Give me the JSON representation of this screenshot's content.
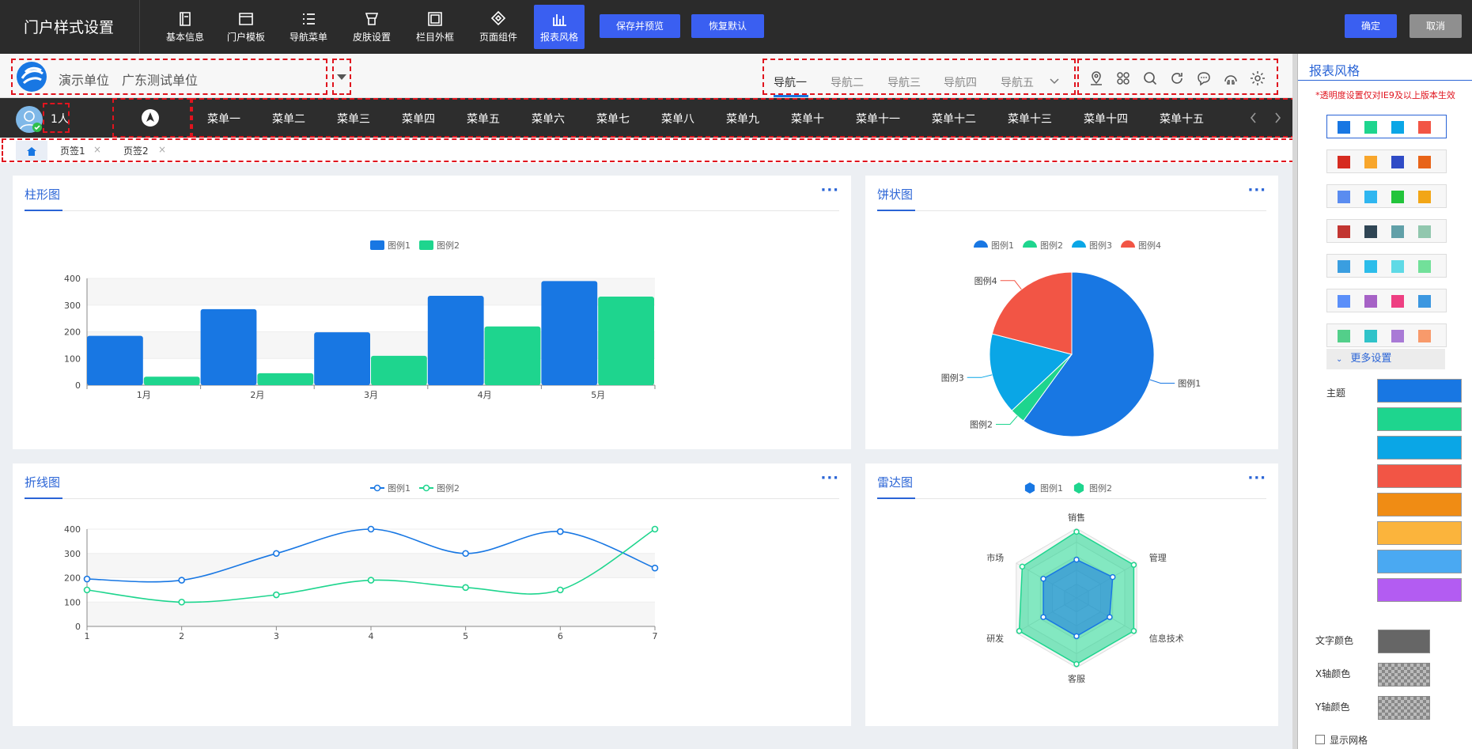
{
  "toolbar": {
    "title": "门户样式设置",
    "buttons": [
      {
        "label": "基本信息",
        "icon": "book-icon"
      },
      {
        "label": "门户模板",
        "icon": "template-icon"
      },
      {
        "label": "导航菜单",
        "icon": "menu-list-icon"
      },
      {
        "label": "皮肤设置",
        "icon": "skin-icon"
      },
      {
        "label": "栏目外框",
        "icon": "frame-icon"
      },
      {
        "label": "页面组件",
        "icon": "component-icon"
      },
      {
        "label": "报表风格",
        "icon": "bar-chart-icon",
        "active": true
      }
    ],
    "save_preview": "保存并预览",
    "restore_default": "恢复默认",
    "confirm": "确定",
    "cancel": "取消"
  },
  "header": {
    "unit_label": "演示单位",
    "unit_name": "广东测试单位",
    "nav": [
      "导航一",
      "导航二",
      "导航三",
      "导航四",
      "导航五"
    ],
    "active_nav": "导航一",
    "icons": [
      "location-icon",
      "apps-icon",
      "search-icon",
      "refresh-icon",
      "chat-icon",
      "help-icon",
      "gear-icon"
    ]
  },
  "menubar": {
    "online_count": "1人",
    "menus": [
      "菜单一",
      "菜单二",
      "菜单三",
      "菜单四",
      "菜单五",
      "菜单六",
      "菜单七",
      "菜单八",
      "菜单九",
      "菜单十",
      "菜单十一",
      "菜单十二",
      "菜单十三",
      "菜单十四",
      "菜单十五"
    ]
  },
  "tabs": [
    "页签1",
    "页签2"
  ],
  "chart_data": [
    {
      "type": "bar",
      "title": "柱形图",
      "categories": [
        "1月",
        "2月",
        "3月",
        "4月",
        "5月"
      ],
      "series": [
        {
          "name": "图例1",
          "values": [
            185,
            285,
            198,
            335,
            390
          ]
        },
        {
          "name": "图例2",
          "values": [
            32,
            45,
            110,
            220,
            332
          ]
        }
      ],
      "ylim": [
        0,
        400
      ],
      "yticks": [
        0,
        100,
        200,
        300,
        400
      ],
      "colors": [
        "#1877e3",
        "#1ed58e"
      ],
      "legend": "top"
    },
    {
      "type": "pie",
      "title": "饼状图",
      "series": [
        {
          "name": "图例1",
          "value": 60
        },
        {
          "name": "图例2",
          "value": 3
        },
        {
          "name": "图例3",
          "value": 16
        },
        {
          "name": "图例4",
          "value": 21
        }
      ],
      "colors": [
        "#1877e3",
        "#1ed58e",
        "#0aa6e6",
        "#f25545"
      ],
      "legend": "top"
    },
    {
      "type": "line",
      "title": "折线图",
      "x": [
        1,
        2,
        3,
        4,
        5,
        6,
        7
      ],
      "series": [
        {
          "name": "图例1",
          "values": [
            195,
            190,
            300,
            400,
            300,
            390,
            240
          ]
        },
        {
          "name": "图例2",
          "values": [
            150,
            100,
            130,
            190,
            160,
            150,
            400
          ]
        }
      ],
      "ylim": [
        0,
        400
      ],
      "yticks": [
        0,
        100,
        200,
        300,
        400
      ],
      "colors": [
        "#1877e3",
        "#1ed58e"
      ],
      "legend": "top"
    },
    {
      "type": "radar",
      "title": "雷达图",
      "indicators": [
        "销售",
        "管理",
        "信息技术",
        "客服",
        "研发",
        "市场"
      ],
      "series": [
        {
          "name": "图例1",
          "values": [
            0.55,
            0.6,
            0.55,
            0.55,
            0.55,
            0.55
          ]
        },
        {
          "name": "图例2",
          "values": [
            0.95,
            0.95,
            0.95,
            0.95,
            0.95,
            0.9
          ]
        }
      ],
      "colors": [
        "#1877e3",
        "#1ed58e"
      ],
      "legend": "top"
    }
  ],
  "right_panel": {
    "title": "报表风格",
    "note": "*透明度设置仅对IE9及以上版本生效",
    "palettes": [
      [
        "#1877e3",
        "#1ed58e",
        "#0aa6e6",
        "#f25545"
      ],
      [
        "#d62b20",
        "#f8a62b",
        "#2f4bc6",
        "#e86418"
      ],
      [
        "#5a8cf0",
        "#2fb6f0",
        "#22c43b",
        "#f2a616"
      ],
      [
        "#c23531",
        "#2f4554",
        "#61a0a8",
        "#91c7ae"
      ],
      [
        "#3a9ee0",
        "#2cbdea",
        "#5fdae6",
        "#72e09a"
      ],
      [
        "#5b8ff9",
        "#a662c6",
        "#ee3f82",
        "#3c97e0"
      ],
      [
        "#53cf8a",
        "#30c3c9",
        "#a97ad6",
        "#f89a6b"
      ]
    ],
    "more_settings": "更多设置",
    "theme_label": "主题",
    "theme_colors": [
      "#1877e3",
      "#1ed58e",
      "#0aa6e6",
      "#f25545",
      "#f08c14",
      "#fbb43c",
      "#4aa9f2",
      "#b35cf2"
    ],
    "text_color_label": "文字颜色",
    "text_color": "#666666",
    "x_axis_color_label": "X轴颜色",
    "y_axis_color_label": "Y轴颜色",
    "show_grid_label": "显示网格"
  }
}
